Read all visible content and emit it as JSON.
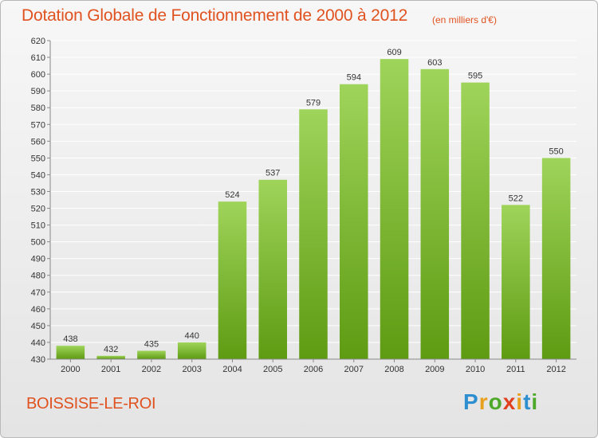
{
  "title": "Dotation Globale de Fonctionnement de 2000 à 2012",
  "unit_note": "(en milliers d'€)",
  "place": "BOISSISE-LE-ROI",
  "logo": {
    "letters": [
      {
        "ch": "P",
        "color": "#2e8fd0"
      },
      {
        "ch": "r",
        "color": "#e8a11f"
      },
      {
        "ch": "o",
        "color": "#4ea82a"
      },
      {
        "ch": "x",
        "color": "#e0401f"
      },
      {
        "ch": "i",
        "color": "#e8a11f"
      },
      {
        "ch": "t",
        "color": "#2e8fd0"
      },
      {
        "ch": "i",
        "color": "#4ea82a"
      }
    ]
  },
  "colors": {
    "bar_top": "#9fd45a",
    "bar_bottom": "#5e9b12",
    "text_accent": "#e0521f"
  },
  "chart_data": {
    "type": "bar",
    "title": "Dotation Globale de Fonctionnement de 2000 à 2012",
    "subtitle": "(en milliers d'€)",
    "categories": [
      "2000",
      "2001",
      "2002",
      "2003",
      "2004",
      "2005",
      "2006",
      "2007",
      "2008",
      "2009",
      "2010",
      "2011",
      "2012"
    ],
    "values": [
      438,
      432,
      435,
      440,
      524,
      537,
      579,
      594,
      609,
      603,
      595,
      522,
      550
    ],
    "ylim": [
      430,
      620
    ],
    "ytick_step": 10,
    "grid": true,
    "legend": "none"
  }
}
